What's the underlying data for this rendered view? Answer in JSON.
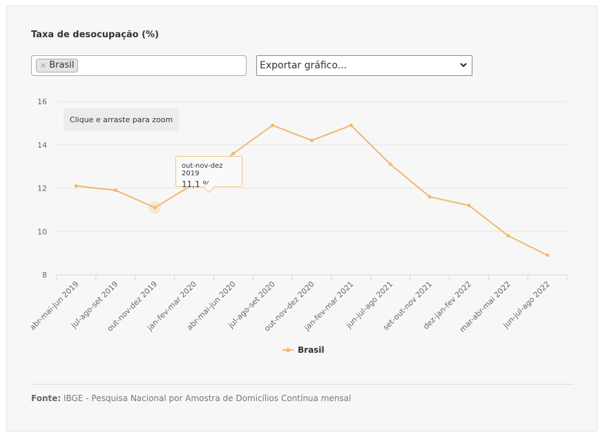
{
  "title": "Taxa de desocupação (%)",
  "filter": {
    "remove_symbol": "×",
    "selected": "Brasil"
  },
  "export_select": {
    "selected": "Exportar gráfico..."
  },
  "zoom_hint": "Clique e arraste para zoom",
  "tooltip": {
    "category": "out-nov-dez 2019",
    "value": "11,1 %"
  },
  "source": {
    "label": "Fonte:",
    "text": "IBGE - Pesquisa Nacional por Amostra de Domicílios Contínua mensal"
  },
  "colors": {
    "series": "#f1b96b",
    "grid": "#e6e6e6",
    "axis": "#ccd6eb"
  },
  "chart_data": {
    "type": "line",
    "categories": [
      "abr-mai-jun 2019",
      "jul-ago-set 2019",
      "out-nov-dez 2019",
      "jan-fev-mar 2020",
      "abr-mai-jun 2020",
      "jul-ago-set 2020",
      "out-nov-dez 2020",
      "jan-fev-mar 2021",
      "jun-jul-ago 2021",
      "set-out-nov 2021",
      "dez-jan-fev 2022",
      "mar-abr-mai 2022",
      "jun-jul-ago 2022"
    ],
    "series": [
      {
        "name": "Brasil",
        "values": [
          12.1,
          11.9,
          11.1,
          12.2,
          13.6,
          14.9,
          14.2,
          14.9,
          13.1,
          11.6,
          11.2,
          9.8,
          8.9
        ]
      }
    ],
    "ylim": [
      8,
      16
    ],
    "yticks": [
      8,
      10,
      12,
      14,
      16
    ],
    "grid": true,
    "legend": "bottom-center",
    "highlighted_index": 2
  }
}
